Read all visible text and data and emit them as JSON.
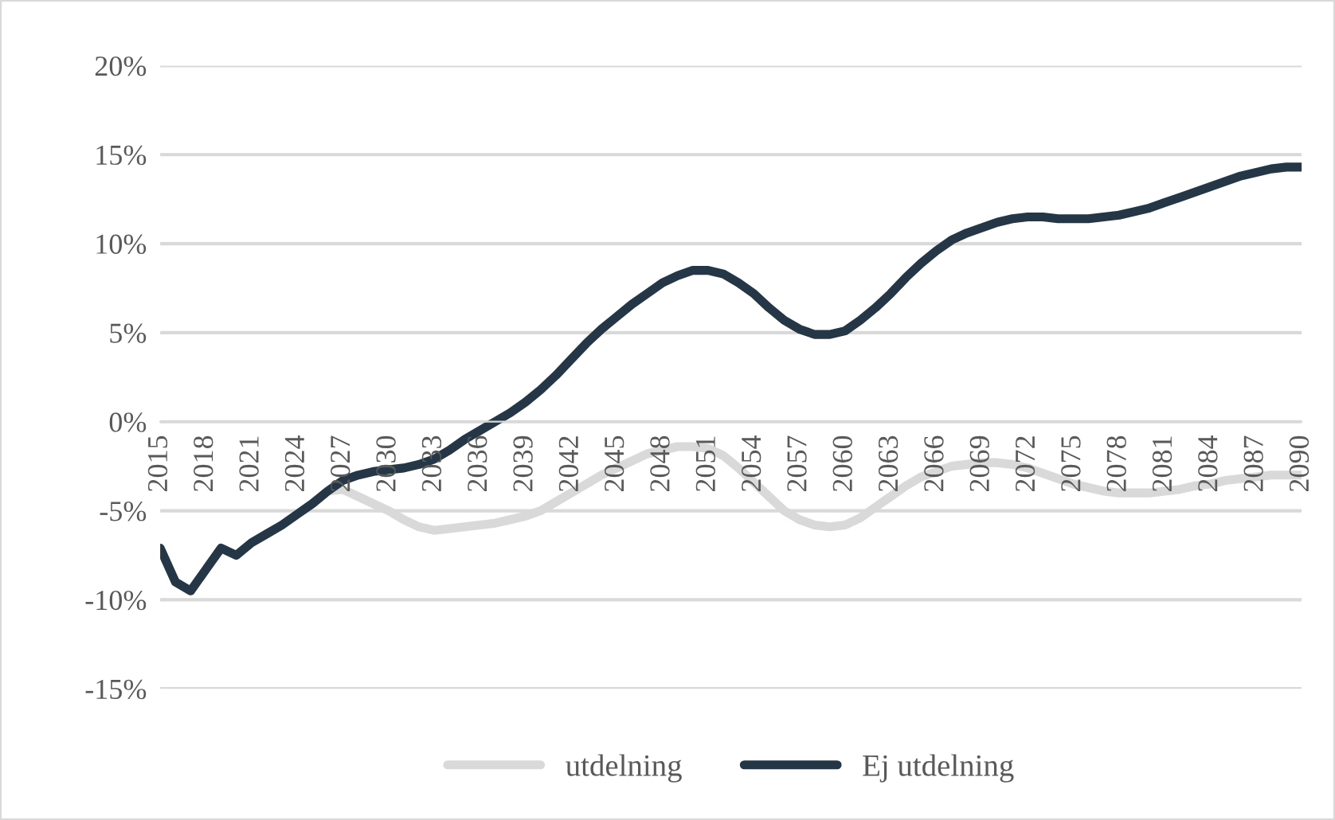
{
  "chart_data": {
    "type": "line",
    "categories": [
      "2015",
      null,
      null,
      "2018",
      null,
      null,
      "2021",
      null,
      null,
      "2024",
      null,
      null,
      "2027",
      null,
      null,
      "2030",
      null,
      null,
      "2033",
      null,
      null,
      "2036",
      null,
      null,
      "2039",
      null,
      null,
      "2042",
      null,
      null,
      "2045",
      null,
      null,
      "2048",
      null,
      null,
      "2051",
      null,
      null,
      "2054",
      null,
      null,
      "2057",
      null,
      null,
      "2060",
      null,
      null,
      "2063",
      null,
      null,
      "2066",
      null,
      null,
      "2069",
      null,
      null,
      "2072",
      null,
      null,
      "2075",
      null,
      null,
      "2078",
      null,
      null,
      "2081",
      null,
      null,
      "2084",
      null,
      null,
      "2087",
      null,
      null,
      "2090"
    ],
    "series": [
      {
        "name": "utdelning",
        "color": "#d9d9d9",
        "values": [
          -7.1,
          -9.0,
          -9.5,
          -8.3,
          -7.1,
          -7.5,
          -6.8,
          -6.3,
          -5.8,
          -5.2,
          -4.6,
          -3.9,
          -3.8,
          -4.2,
          -4.6,
          -5.0,
          -5.5,
          -5.9,
          -6.1,
          -6.0,
          -5.9,
          -5.8,
          -5.7,
          -5.5,
          -5.3,
          -5.0,
          -4.5,
          -4.0,
          -3.5,
          -3.0,
          -2.6,
          -2.2,
          -1.8,
          -1.6,
          -1.4,
          -1.4,
          -1.5,
          -1.9,
          -2.6,
          -3.4,
          -4.2,
          -5.0,
          -5.5,
          -5.8,
          -5.9,
          -5.8,
          -5.4,
          -4.8,
          -4.2,
          -3.6,
          -3.1,
          -2.8,
          -2.5,
          -2.4,
          -2.3,
          -2.3,
          -2.4,
          -2.6,
          -2.9,
          -3.2,
          -3.5,
          -3.7,
          -3.9,
          -4.0,
          -4.0,
          -4.0,
          -3.9,
          -3.8,
          -3.6,
          -3.5,
          -3.3,
          -3.2,
          -3.1,
          -3.0,
          -3.0,
          -3.0
        ]
      },
      {
        "name": "Ej utdelning",
        "color": "#253746",
        "values": [
          -7.1,
          -9.0,
          -9.5,
          -8.3,
          -7.1,
          -7.5,
          -6.8,
          -6.3,
          -5.8,
          -5.2,
          -4.6,
          -3.9,
          -3.3,
          -3.0,
          -2.8,
          -2.7,
          -2.6,
          -2.4,
          -2.1,
          -1.6,
          -1.0,
          -0.5,
          0.0,
          0.5,
          1.1,
          1.8,
          2.6,
          3.5,
          4.4,
          5.2,
          5.9,
          6.6,
          7.2,
          7.8,
          8.2,
          8.5,
          8.5,
          8.3,
          7.8,
          7.2,
          6.4,
          5.7,
          5.2,
          4.9,
          4.9,
          5.1,
          5.7,
          6.4,
          7.2,
          8.1,
          8.9,
          9.6,
          10.2,
          10.6,
          10.9,
          11.2,
          11.4,
          11.5,
          11.5,
          11.4,
          11.4,
          11.4,
          11.5,
          11.6,
          11.8,
          12.0,
          12.3,
          12.6,
          12.9,
          13.2,
          13.5,
          13.8,
          14.0,
          14.2,
          14.3,
          14.3
        ]
      }
    ],
    "ylim": [
      -15,
      20
    ],
    "yticks": [
      {
        "value": -15,
        "label": "-15%"
      },
      {
        "value": -10,
        "label": "-10%"
      },
      {
        "value": -5,
        "label": "-5%"
      },
      {
        "value": 0,
        "label": "0%"
      },
      {
        "value": 5,
        "label": "5%"
      },
      {
        "value": 10,
        "label": "10%"
      },
      {
        "value": 15,
        "label": "15%"
      },
      {
        "value": 20,
        "label": "20%"
      }
    ],
    "grid": "y",
    "legend": "bottom",
    "marker": "none",
    "line_style": "solid"
  }
}
